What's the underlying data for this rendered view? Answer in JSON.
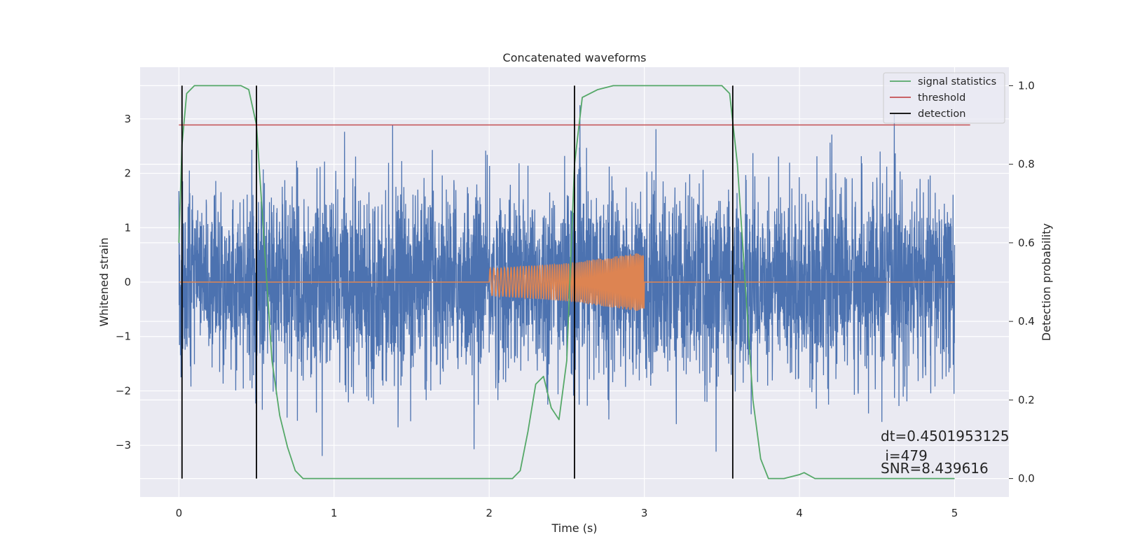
{
  "chart_data": {
    "type": "line",
    "title": "Concatenated waveforms",
    "xlabel": "Time (s)",
    "ylabel": "Whitened strain",
    "ylabel_right": "Detection probability",
    "xlim": [
      -0.25,
      5.35
    ],
    "ylim": [
      -3.95,
      3.95
    ],
    "ylim_right": [
      -0.047,
      1.047
    ],
    "x_ticks": [
      0,
      1,
      2,
      3,
      4,
      5
    ],
    "x_tick_labels": [
      "0",
      "1",
      "2",
      "3",
      "4",
      "5"
    ],
    "y_ticks": [
      -3,
      -2,
      -1,
      0,
      1,
      2,
      3
    ],
    "y_tick_labels": [
      "−3",
      "−2",
      "−1",
      "0",
      "1",
      "2",
      "3"
    ],
    "y_right_ticks": [
      0.0,
      0.2,
      0.4,
      0.6,
      0.8,
      1.0
    ],
    "y_right_tick_labels": [
      "0.0",
      "0.2",
      "0.4",
      "0.6",
      "0.8",
      "1.0"
    ],
    "grid": true,
    "legend_position": "top-right",
    "colors": {
      "strain": "#4c72b0",
      "template": "#dd8452",
      "signal_statistics": "#55a868",
      "threshold": "#c44e52",
      "detection": "#000000",
      "plot_background": "#eaeaf2"
    },
    "legend": [
      "signal statistics",
      "threshold",
      "detection"
    ],
    "series": [
      {
        "name": "",
        "axis": "left",
        "description_hidden": "whitened strain noise, x from 0 to 5 s, values approximately within [-3.4, 3.4]",
        "x_range": [
          0,
          5
        ],
        "y_range": [
          -3.4,
          3.4
        ]
      },
      {
        "name": "",
        "axis": "left",
        "x": [
          0,
          2,
          2.5,
          3,
          3.01,
          5
        ],
        "envelope": [
          0,
          0.25,
          0.35,
          0.55,
          0,
          0
        ]
      },
      {
        "name": "signal statistics",
        "axis": "right",
        "x": [
          0,
          0.02,
          0.05,
          0.1,
          0.2,
          0.3,
          0.4,
          0.45,
          0.5,
          0.55,
          0.6,
          0.65,
          0.7,
          0.75,
          0.8,
          0.9,
          1.0,
          1.5,
          2.0,
          2.15,
          2.2,
          2.25,
          2.3,
          2.35,
          2.4,
          2.45,
          2.5,
          2.55,
          2.6,
          2.7,
          2.8,
          3.0,
          3.5,
          3.55,
          3.6,
          3.65,
          3.7,
          3.75,
          3.8,
          3.9,
          4.0,
          4.03,
          4.1,
          4.5,
          5.0
        ],
        "values": [
          0.6,
          0.85,
          0.98,
          1.0,
          1.0,
          1.0,
          1.0,
          0.99,
          0.9,
          0.6,
          0.3,
          0.16,
          0.08,
          0.02,
          0.0,
          0.0,
          0.0,
          0.0,
          0.0,
          0.0,
          0.02,
          0.12,
          0.24,
          0.26,
          0.18,
          0.15,
          0.3,
          0.8,
          0.97,
          0.99,
          1.0,
          1.0,
          1.0,
          0.98,
          0.8,
          0.5,
          0.2,
          0.05,
          0.0,
          0.0,
          0.01,
          0.015,
          0.0,
          0.0,
          0.0
        ]
      },
      {
        "name": "threshold",
        "axis": "right",
        "x": [
          0,
          5.1
        ],
        "values": [
          0.9,
          0.9
        ]
      },
      {
        "name": "detection",
        "axis": "left",
        "x": [
          0.02,
          0.5,
          2.55,
          3.57
        ]
      }
    ],
    "annotations": [
      "dt=0.4501953125",
      " i=479",
      "SNR=8.439616"
    ]
  }
}
